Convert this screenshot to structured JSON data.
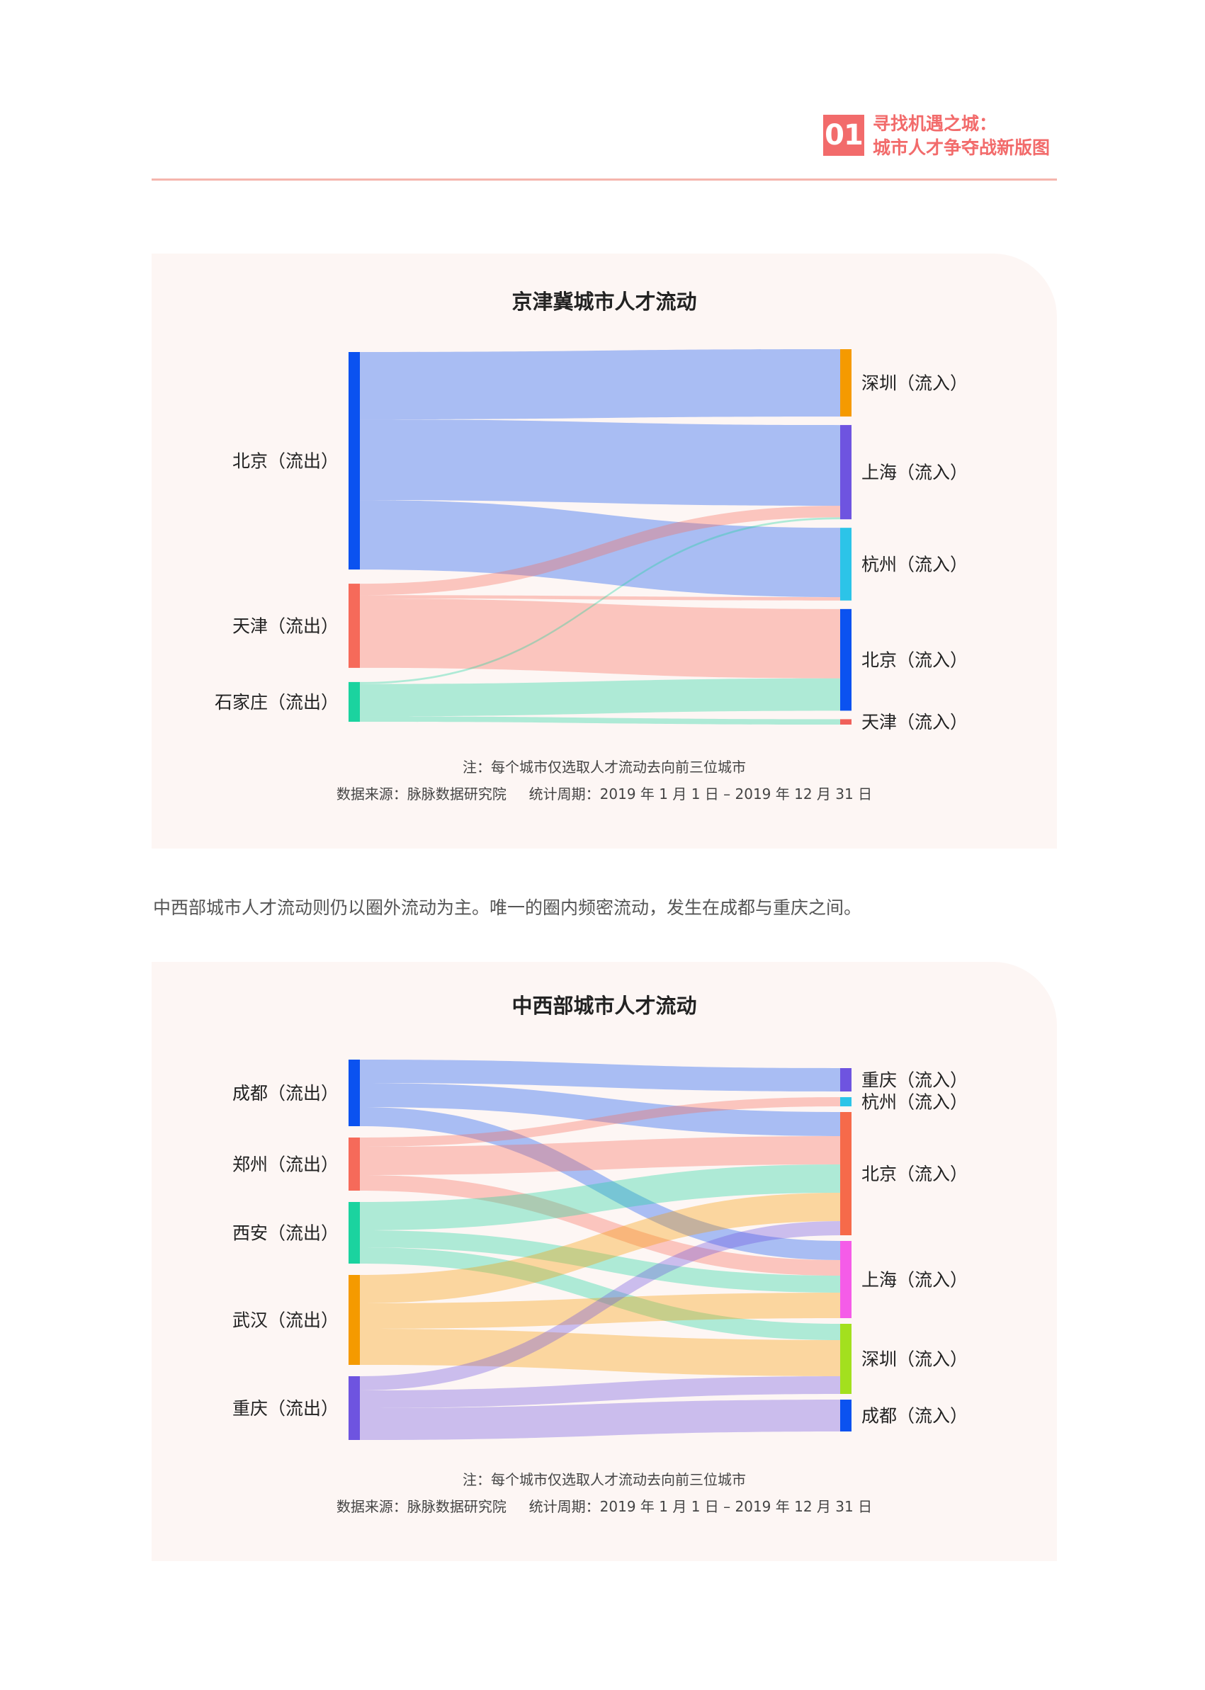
{
  "header": {
    "badge": "01",
    "title_line1": "寻找机遇之城：",
    "title_line2": "城市人才争夺战新版图"
  },
  "paragraph": "中西部城市人才流动则仍以圈外流动为主。唯一的圈内频密流动，发生在成都与重庆之间。",
  "chart_data": [
    {
      "type": "sankey",
      "title": "京津冀城市人才流动",
      "note_line1": "注：每个城市仅选取人才流动去向前三位城市",
      "note_line2": "数据来源：脉脉数据研究院     统计周期：2019 年 1 月 1 日 – 2019 年 12 月 31 日",
      "sources": [
        {
          "id": "bj_out",
          "label": "北京（流出）",
          "color": "#0b52f0"
        },
        {
          "id": "tj_out",
          "label": "天津（流出）",
          "color": "#f66a5a"
        },
        {
          "id": "sjz_out",
          "label": "石家庄（流出）",
          "color": "#1bd39f"
        }
      ],
      "targets": [
        {
          "id": "sz_in",
          "label": "深圳（流入）",
          "color": "#f59a00"
        },
        {
          "id": "sh_in",
          "label": "上海（流入）",
          "color": "#6e54e0"
        },
        {
          "id": "hz_in",
          "label": "杭州（流入）",
          "color": "#2cc4e8"
        },
        {
          "id": "bj_in",
          "label": "北京（流入）",
          "color": "#0b52f0"
        },
        {
          "id": "tj_in",
          "label": "天津（流入）",
          "color": "#f0605a"
        }
      ],
      "links": [
        {
          "source": "bj_out",
          "target": "sz_in",
          "value": 100
        },
        {
          "source": "bj_out",
          "target": "sh_in",
          "value": 120
        },
        {
          "source": "bj_out",
          "target": "hz_in",
          "value": 103
        },
        {
          "source": "tj_out",
          "target": "sh_in",
          "value": 17
        },
        {
          "source": "tj_out",
          "target": "hz_in",
          "value": 5
        },
        {
          "source": "tj_out",
          "target": "bj_in",
          "value": 103
        },
        {
          "source": "sjz_out",
          "target": "sh_in",
          "value": 3
        },
        {
          "source": "sjz_out",
          "target": "bj_in",
          "value": 48
        },
        {
          "source": "sjz_out",
          "target": "tj_in",
          "value": 8
        }
      ]
    },
    {
      "type": "sankey",
      "title": "中西部城市人才流动",
      "note_line1": "注：每个城市仅选取人才流动去向前三位城市",
      "note_line2": "数据来源：脉脉数据研究院     统计周期：2019 年 1 月 1 日 – 2019 年 12 月 31 日",
      "sources": [
        {
          "id": "cd_out",
          "label": "成都（流出）",
          "color": "#0b52f0"
        },
        {
          "id": "zz_out",
          "label": "郑州（流出）",
          "color": "#f66a5a"
        },
        {
          "id": "xa_out",
          "label": "西安（流出）",
          "color": "#1bd39f"
        },
        {
          "id": "wh_out",
          "label": "武汉（流出）",
          "color": "#f59a00"
        },
        {
          "id": "cq_out",
          "label": "重庆（流出）",
          "color": "#6e54e0"
        }
      ],
      "targets": [
        {
          "id": "cq_in",
          "label": "重庆（流入）",
          "color": "#6e54e0"
        },
        {
          "id": "hz_in",
          "label": "杭州（流入）",
          "color": "#2cc4e8"
        },
        {
          "id": "bj_in",
          "label": "北京（流入）",
          "color": "#f66a4a"
        },
        {
          "id": "sh_in",
          "label": "上海（流入）",
          "color": "#f55ce8"
        },
        {
          "id": "sz_in",
          "label": "深圳（流入）",
          "color": "#a3e01e"
        },
        {
          "id": "cd_in",
          "label": "成都（流入）",
          "color": "#0b52f0"
        }
      ],
      "links": [
        {
          "source": "cd_out",
          "target": "cq_in",
          "value": 33
        },
        {
          "source": "cd_out",
          "target": "bj_in",
          "value": 34
        },
        {
          "source": "cd_out",
          "target": "sh_in",
          "value": 27
        },
        {
          "source": "zz_out",
          "target": "hz_in",
          "value": 13
        },
        {
          "source": "zz_out",
          "target": "bj_in",
          "value": 40
        },
        {
          "source": "zz_out",
          "target": "sh_in",
          "value": 22
        },
        {
          "source": "xa_out",
          "target": "bj_in",
          "value": 40
        },
        {
          "source": "xa_out",
          "target": "sh_in",
          "value": 24
        },
        {
          "source": "xa_out",
          "target": "sz_in",
          "value": 23
        },
        {
          "source": "wh_out",
          "target": "bj_in",
          "value": 40
        },
        {
          "source": "wh_out",
          "target": "sh_in",
          "value": 36
        },
        {
          "source": "wh_out",
          "target": "sz_in",
          "value": 51
        },
        {
          "source": "cq_out",
          "target": "bj_in",
          "value": 20
        },
        {
          "source": "cq_out",
          "target": "sz_in",
          "value": 25
        },
        {
          "source": "cq_out",
          "target": "cd_in",
          "value": 45
        }
      ]
    }
  ]
}
